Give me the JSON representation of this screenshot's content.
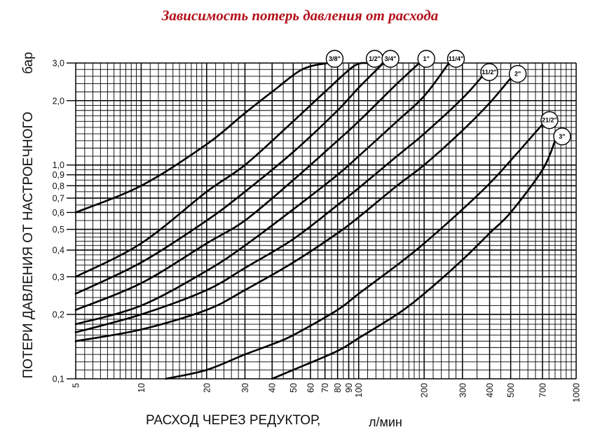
{
  "title": "Зависимость потерь давления от расхода",
  "chart_data": {
    "type": "line",
    "title": "Зависимость потерь давления от расхода",
    "xlabel": "РАСХОД ЧЕРЕЗ РЕДУКТОР,",
    "xunit": "л/мин",
    "ylabel": "ПОТЕРИ ДАВЛЕНИЯ ОТ НАСТРОЕЧНОГО",
    "yunit": "бар",
    "xscale": "log",
    "yscale": "log",
    "xlim": [
      5,
      1000
    ],
    "ylim": [
      0.1,
      3.0
    ],
    "grid": true,
    "xticks": [
      5,
      10,
      20,
      30,
      40,
      50,
      60,
      70,
      80,
      90,
      100,
      200,
      300,
      400,
      500,
      700,
      1000
    ],
    "xtick_labels": [
      "5",
      "10",
      "20",
      "30",
      "40",
      "50",
      "60",
      "70",
      "80",
      "90",
      "100",
      "200",
      "300",
      "400",
      "500",
      "700",
      "1000"
    ],
    "yticks": [
      0.1,
      0.2,
      0.3,
      0.4,
      0.5,
      0.6,
      0.7,
      0.8,
      0.9,
      1.0,
      2.0,
      3.0
    ],
    "ytick_labels": [
      "0,1",
      "0,2",
      "0,3",
      "0,4",
      "0,5",
      "0,6",
      "0,7",
      "0,8",
      "0,9",
      "1,0",
      "2,0",
      "3,0"
    ],
    "series": [
      {
        "name": "3/8\"",
        "x": [
          5,
          10,
          20,
          30,
          40,
          55,
          72
        ],
        "y": [
          0.6,
          0.8,
          1.25,
          1.75,
          2.2,
          2.8,
          3.0
        ]
      },
      {
        "name": "1/2\"",
        "x": [
          5,
          10,
          20,
          30,
          50,
          70,
          95,
          110
        ],
        "y": [
          0.3,
          0.43,
          0.75,
          1.0,
          1.6,
          2.2,
          2.9,
          3.0
        ]
      },
      {
        "name": "3/4\"",
        "x": [
          5,
          10,
          20,
          30,
          50,
          80,
          100,
          130
        ],
        "y": [
          0.25,
          0.35,
          0.55,
          0.75,
          1.15,
          1.8,
          2.3,
          3.0
        ]
      },
      {
        "name": "1\"",
        "x": [
          5,
          10,
          20,
          30,
          50,
          80,
          100,
          150,
          190
        ],
        "y": [
          0.21,
          0.28,
          0.43,
          0.55,
          0.85,
          1.3,
          1.6,
          2.4,
          3.0
        ]
      },
      {
        "name": "11/4\"",
        "x": [
          5,
          10,
          20,
          30,
          50,
          80,
          100,
          150,
          200,
          260
        ],
        "y": [
          0.18,
          0.22,
          0.32,
          0.42,
          0.62,
          0.9,
          1.1,
          1.6,
          2.1,
          3.0
        ]
      },
      {
        "name": "11/2\"",
        "x": [
          5,
          10,
          20,
          30,
          50,
          80,
          100,
          150,
          200,
          300,
          370
        ],
        "y": [
          0.165,
          0.2,
          0.26,
          0.33,
          0.45,
          0.65,
          0.78,
          1.1,
          1.4,
          2.05,
          2.6
        ]
      },
      {
        "name": "2\"",
        "x": [
          5,
          10,
          20,
          30,
          50,
          80,
          100,
          150,
          200,
          300,
          400,
          500
        ],
        "y": [
          0.15,
          0.17,
          0.21,
          0.26,
          0.35,
          0.48,
          0.57,
          0.8,
          1.0,
          1.45,
          1.95,
          2.55
        ]
      },
      {
        "name": "21/2\"",
        "x": [
          13,
          20,
          30,
          40,
          50,
          80,
          100,
          150,
          200,
          300,
          400,
          500,
          700
        ],
        "y": [
          0.1,
          0.11,
          0.13,
          0.145,
          0.16,
          0.21,
          0.25,
          0.34,
          0.43,
          0.62,
          0.82,
          1.05,
          1.55
        ]
      },
      {
        "name": "3\"",
        "x": [
          40,
          50,
          80,
          100,
          150,
          200,
          300,
          400,
          500,
          700,
          800
        ],
        "y": [
          0.1,
          0.11,
          0.135,
          0.155,
          0.2,
          0.25,
          0.36,
          0.48,
          0.6,
          0.95,
          1.3
        ]
      }
    ]
  }
}
